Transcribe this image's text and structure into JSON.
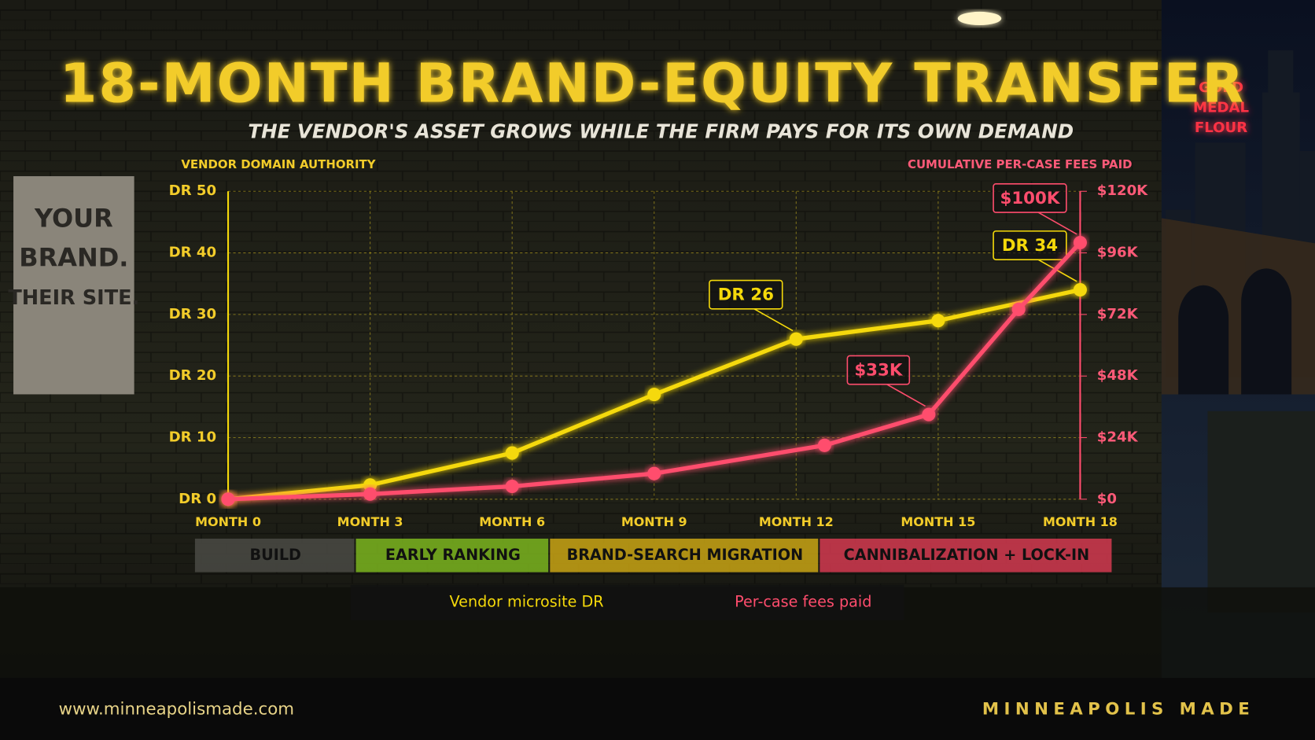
{
  "chart_data": {
    "type": "line",
    "title": "18-MONTH BRAND-EQUITY TRANSFER",
    "subtitle": "THE VENDOR'S ASSET GROWS WHILE THE FIRM PAYS FOR ITS OWN DEMAND",
    "y_label": "VENDOR DOMAIN AUTHORITY",
    "y2_label": "CUMULATIVE PER-CASE FEES PAID",
    "xlim": [
      0,
      18
    ],
    "xticks": [
      {
        "value": 0,
        "label": "MONTH 0"
      },
      {
        "value": 3,
        "label": "MONTH 3"
      },
      {
        "value": 6,
        "label": "MONTH 6"
      },
      {
        "value": 9,
        "label": "MONTH 9"
      },
      {
        "value": 12,
        "label": "MONTH 12"
      },
      {
        "value": 15,
        "label": "MONTH 15"
      },
      {
        "value": 18,
        "label": "MONTH 18"
      }
    ],
    "ylim": [
      0,
      50
    ],
    "yticks": [
      {
        "value": 0,
        "label": "DR 0"
      },
      {
        "value": 10,
        "label": "DR 10"
      },
      {
        "value": 20,
        "label": "DR 20"
      },
      {
        "value": 30,
        "label": "DR 30"
      },
      {
        "value": 40,
        "label": "DR 40"
      },
      {
        "value": 50,
        "label": "DR 50"
      }
    ],
    "y2lim": [
      0,
      120000
    ],
    "y2ticks": [
      {
        "value": 0,
        "label": "$0"
      },
      {
        "value": 24000,
        "label": "$24K"
      },
      {
        "value": 48000,
        "label": "$48K"
      },
      {
        "value": 72000,
        "label": "$72K"
      },
      {
        "value": 96000,
        "label": "$96K"
      },
      {
        "value": 120000,
        "label": "$120K"
      }
    ],
    "grid": true,
    "series": [
      {
        "name": "Vendor microsite DR",
        "color": "#f5d90a",
        "x": [
          0,
          3,
          6,
          9,
          12,
          15,
          18
        ],
        "values": [
          0,
          2.3,
          7.5,
          17,
          26,
          29,
          34
        ],
        "value_labels": [
          null,
          null,
          null,
          null,
          "DR 26",
          null,
          "DR 34"
        ]
      },
      {
        "name": "Per-case fees paid",
        "color": "#ff4d6d",
        "axis": "y2",
        "x": [
          0,
          3,
          6,
          9,
          12.6,
          14.8,
          16.7,
          18
        ],
        "values": [
          0,
          2000,
          5000,
          10000,
          21000,
          33000,
          74000,
          100000
        ],
        "value_labels": [
          null,
          null,
          null,
          null,
          null,
          "$33K",
          null,
          "$100K"
        ]
      }
    ],
    "phases": [
      {
        "label": "BUILD",
        "start": -0.7,
        "end": 2.7,
        "color": "#4a4a44"
      },
      {
        "label": "EARLY RANKING",
        "start": 2.7,
        "end": 6.8,
        "color": "#7bb51f"
      },
      {
        "label": "BRAND-SEARCH MIGRATION",
        "start": 6.8,
        "end": 12.5,
        "color": "#c9a414"
      },
      {
        "label": "CANNIBALIZATION + LOCK-IN",
        "start": 12.5,
        "end": 18.7,
        "color": "#d43a50"
      }
    ]
  },
  "scene": {
    "poster": [
      "YOUR",
      "BRAND.",
      "THEIR SITE."
    ],
    "sign": [
      "GOLD",
      "MEDAL",
      "FLOUR"
    ]
  },
  "footer": {
    "url": "www.minneapolismade.com",
    "brand": "MINNEAPOLIS MADE"
  }
}
